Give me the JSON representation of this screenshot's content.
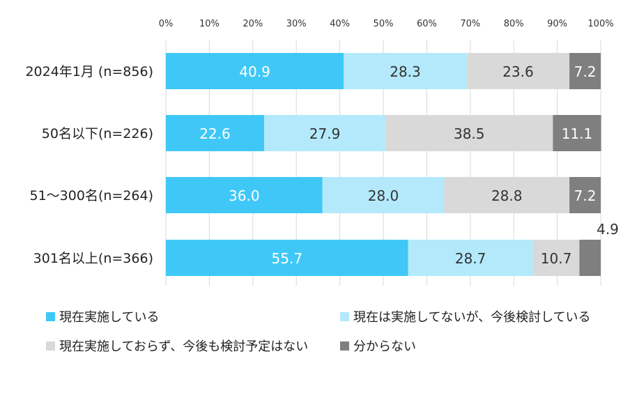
{
  "chart_data": {
    "type": "bar",
    "orientation": "horizontal",
    "stacked": true,
    "categories": [
      "2024年1月 (n=856)",
      "50名以下(n=226)",
      "51～300名(n=264)",
      "301名以上(n=366)"
    ],
    "series": [
      {
        "name": "現在実施している",
        "color": "#3FC8F7",
        "label_color": "#ffffff",
        "values": [
          40.9,
          22.6,
          36.0,
          55.7
        ],
        "labels": [
          "40.9",
          "22.6",
          "36.0",
          "55.7"
        ]
      },
      {
        "name": "現在は実施してないが、今後検討している",
        "color": "#B3E9FB",
        "label_color": "#333333",
        "values": [
          28.3,
          27.9,
          28.0,
          28.7
        ],
        "labels": [
          "28.3",
          "27.9",
          "28.0",
          "28.7"
        ]
      },
      {
        "name": "現在実施しておらず、今後も検討予定はない",
        "color": "#D9D9D9",
        "label_color": "#333333",
        "values": [
          23.6,
          38.5,
          28.8,
          10.7
        ],
        "labels": [
          "23.6",
          "38.5",
          "28.8",
          "10.7"
        ]
      },
      {
        "name": "分からない",
        "color": "#7F7F7F",
        "label_color": "#ffffff",
        "values": [
          7.2,
          11.1,
          7.2,
          4.9
        ],
        "labels": [
          "7.2",
          "11.1",
          "7.2",
          "4.9"
        ]
      }
    ],
    "xlim": [
      0,
      100
    ],
    "x_ticks": [
      "0%",
      "10%",
      "20%",
      "30%",
      "40%",
      "50%",
      "60%",
      "70%",
      "80%",
      "90%",
      "100%"
    ],
    "x_axis_position": "top",
    "grid": true,
    "legend_position": "bottom",
    "title": "",
    "xlabel": "",
    "ylabel": ""
  }
}
